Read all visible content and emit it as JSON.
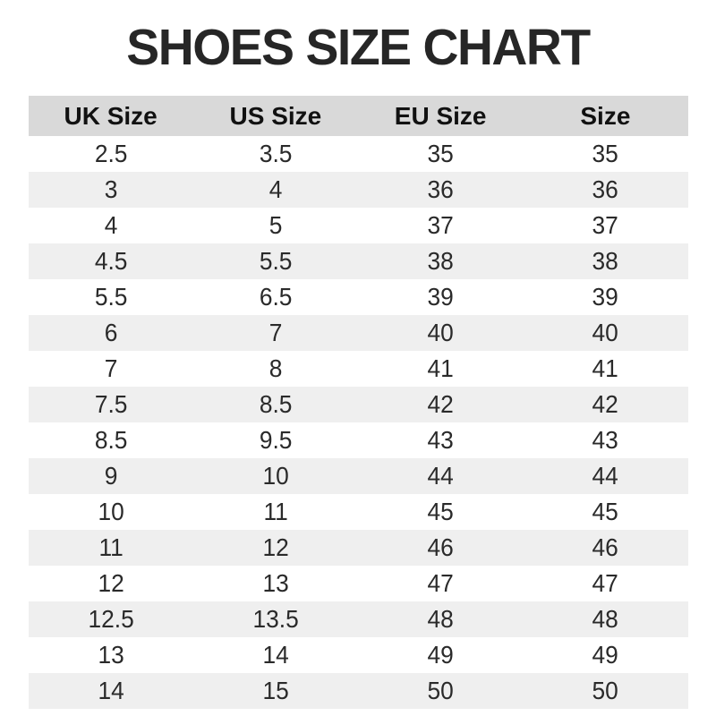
{
  "page": {
    "title": "SHOES SIZE CHART"
  },
  "colors": {
    "title_color": "#262626",
    "header_bg": "#d9d9d9",
    "stripe_bg": "#efefef",
    "header_text": "#111111",
    "body_text": "#2a2a2a",
    "background": "#ffffff"
  },
  "chart_data": {
    "type": "table",
    "title": "SHOES SIZE CHART",
    "columns": [
      "UK Size",
      "US Size",
      "EU Size",
      "Size"
    ],
    "rows": [
      [
        "2.5",
        "3.5",
        "35",
        "35"
      ],
      [
        "3",
        "4",
        "36",
        "36"
      ],
      [
        "4",
        "5",
        "37",
        "37"
      ],
      [
        "4.5",
        "5.5",
        "38",
        "38"
      ],
      [
        "5.5",
        "6.5",
        "39",
        "39"
      ],
      [
        "6",
        "7",
        "40",
        "40"
      ],
      [
        "7",
        "8",
        "41",
        "41"
      ],
      [
        "7.5",
        "8.5",
        "42",
        "42"
      ],
      [
        "8.5",
        "9.5",
        "43",
        "43"
      ],
      [
        "9",
        "10",
        "44",
        "44"
      ],
      [
        "10",
        "11",
        "45",
        "45"
      ],
      [
        "11",
        "12",
        "46",
        "46"
      ],
      [
        "12",
        "13",
        "47",
        "47"
      ],
      [
        "12.5",
        "13.5",
        "48",
        "48"
      ],
      [
        "13",
        "14",
        "49",
        "49"
      ],
      [
        "14",
        "15",
        "50",
        "50"
      ]
    ],
    "layout": {
      "stripe_pattern": "even rows shaded",
      "grid": "off",
      "column_alignment": "center"
    }
  }
}
